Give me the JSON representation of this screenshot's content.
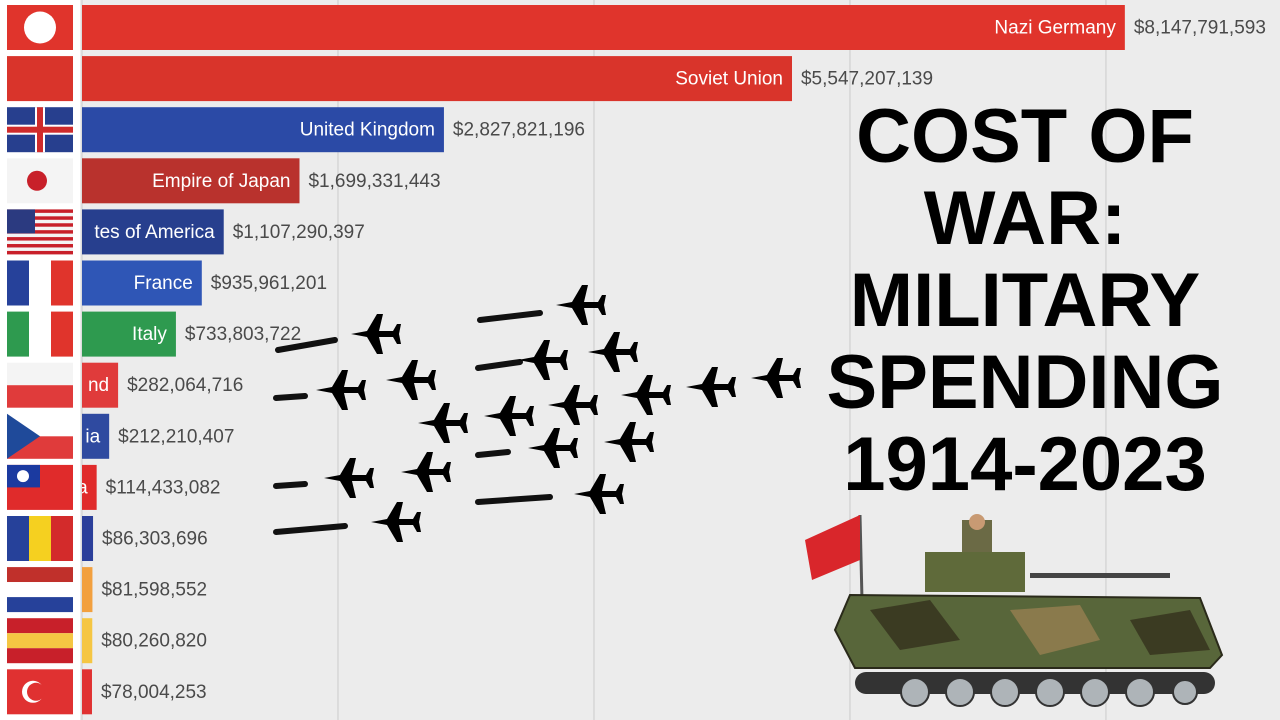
{
  "chart_data": {
    "type": "bar",
    "orientation": "horizontal",
    "title_lines": [
      "COST OF",
      "WAR:",
      "MILITARY",
      "SPENDING",
      "1914-2023"
    ],
    "categories": [
      "Nazi Germany",
      "Soviet Union",
      "United Kingdom",
      "Empire of Japan",
      "tes of America",
      "France",
      "Italy",
      "nd",
      "ia",
      "a",
      null,
      null,
      null,
      null
    ],
    "values": [
      8147791593,
      5547207139,
      2827821196,
      1699331443,
      1107290397,
      935961201,
      733803722,
      282064716,
      212210407,
      114433082,
      86303696,
      81598552,
      80260820,
      78004253
    ],
    "value_labels": [
      "$8,147,791,593",
      "$5,547,207,139",
      "$2,827,821,196",
      "$1,699,331,443",
      "$1,107,290,397",
      "$935,961,201",
      "$733,803,722",
      "$282,064,716",
      "$212,210,407",
      "$114,433,082",
      "$86,303,696",
      "$81,598,552",
      "$80,260,820",
      "$78,004,253"
    ],
    "colors": [
      "#e0342c",
      "#d9342b",
      "#2b4aa6",
      "#b9322d",
      "#273f8e",
      "#2f56b6",
      "#2e9a4f",
      "#e03b3b",
      "#2f4aa0",
      "#e02b2b",
      "#2b3f9a",
      "#f2a03f",
      "#f5c643",
      "#e03131"
    ],
    "xlim": [
      0,
      9360000000
    ],
    "xticks": [
      0,
      2000000000,
      4000000000,
      6000000000,
      8000000000
    ],
    "grid": true,
    "tick_labels": false
  }
}
